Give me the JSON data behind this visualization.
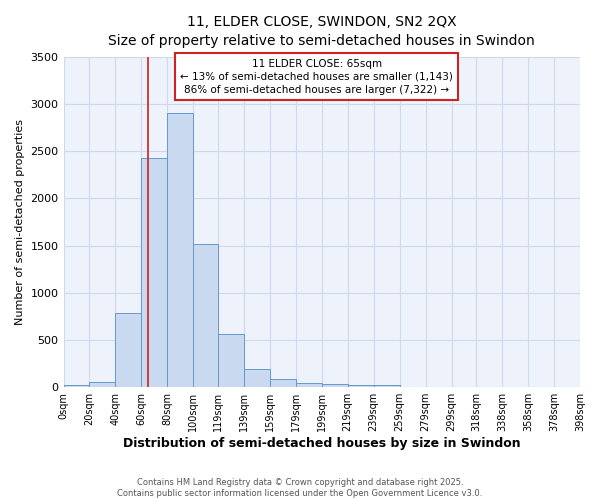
{
  "title": "11, ELDER CLOSE, SWINDON, SN2 2QX",
  "subtitle": "Size of property relative to semi-detached houses in Swindon",
  "xlabel": "Distribution of semi-detached houses by size in Swindon",
  "ylabel": "Number of semi-detached properties",
  "annotation_title": "11 ELDER CLOSE: 65sqm",
  "annotation_line1": "← 13% of semi-detached houses are smaller (1,143)",
  "annotation_line2": "86% of semi-detached houses are larger (7,322) →",
  "bin_edges": [
    0,
    20,
    40,
    60,
    80,
    100,
    119,
    139,
    159,
    179,
    199,
    219,
    239,
    259,
    279,
    299,
    318,
    338,
    358,
    378,
    398
  ],
  "bin_labels": [
    "0sqm",
    "20sqm",
    "40sqm",
    "60sqm",
    "80sqm",
    "100sqm",
    "119sqm",
    "139sqm",
    "159sqm",
    "179sqm",
    "199sqm",
    "219sqm",
    "239sqm",
    "259sqm",
    "279sqm",
    "299sqm",
    "318sqm",
    "338sqm",
    "358sqm",
    "378sqm",
    "398sqm"
  ],
  "counts": [
    25,
    50,
    790,
    2430,
    2900,
    1520,
    560,
    195,
    90,
    40,
    35,
    25,
    20,
    5,
    5,
    5,
    5,
    5,
    5,
    5
  ],
  "bar_color": "#c8d9f0",
  "bar_edge_color": "#6699cc",
  "vline_color": "#cc2222",
  "vline_x": 65,
  "box_edge_color": "#cc2222",
  "bg_color": "#eef2fb",
  "grid_color": "#d0d8ee",
  "ylim": [
    0,
    3500
  ],
  "yticks": [
    0,
    500,
    1000,
    1500,
    2000,
    2500,
    3000,
    3500
  ],
  "footer_line1": "Contains HM Land Registry data © Crown copyright and database right 2025.",
  "footer_line2": "Contains public sector information licensed under the Open Government Licence v3.0."
}
